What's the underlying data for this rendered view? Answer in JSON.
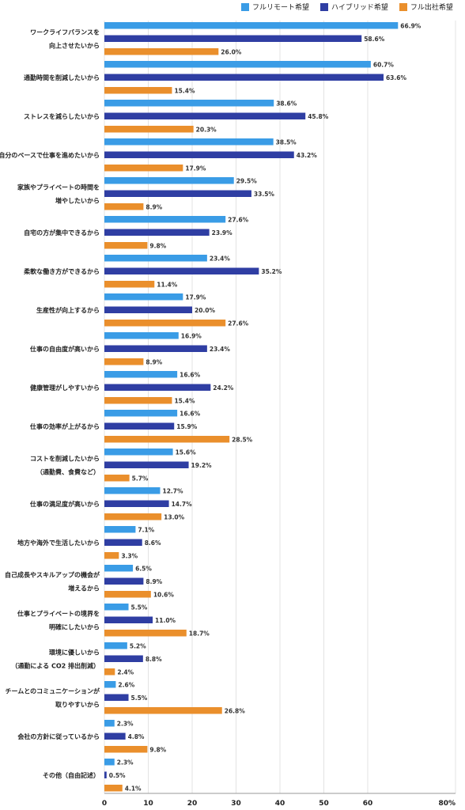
{
  "chart_data": {
    "type": "bar",
    "orientation": "horizontal",
    "title": "",
    "xlabel": "",
    "ylabel": "",
    "xlim": [
      0,
      80
    ],
    "ticks": [
      "0",
      "10",
      "20",
      "30",
      "40",
      "50",
      "60",
      "80%"
    ],
    "tick_values": [
      0,
      10,
      20,
      30,
      40,
      50,
      60,
      80
    ],
    "grid": true,
    "legend_position": "top-right",
    "categories": [
      [
        "ワークライフバランスを",
        "向上させたいから"
      ],
      [
        "通勤時間を削減したいから"
      ],
      [
        "ストレスを減らしたいから"
      ],
      [
        "自分のペースで仕事を進めたいから"
      ],
      [
        "家族やプライベートの時間を",
        "増やしたいから"
      ],
      [
        "自宅の方が集中できるから"
      ],
      [
        "柔軟な働き方ができるから"
      ],
      [
        "生産性が向上するから"
      ],
      [
        "仕事の自由度が高いから"
      ],
      [
        "健康管理がしやすいから"
      ],
      [
        "仕事の効率が上がるから"
      ],
      [
        "コストを削減したいから",
        "（通勤費、食費など）"
      ],
      [
        "仕事の満足度が高いから"
      ],
      [
        "地方や海外で生活したいから"
      ],
      [
        "自己成長やスキルアップの機会が",
        "増えるから"
      ],
      [
        "仕事とプライベートの境界を",
        "明確にしたいから"
      ],
      [
        "環境に優しいから",
        "（通勤による CO2 排出削減）"
      ],
      [
        "チームとのコミュニケーションが",
        "取りやすいから"
      ],
      [
        "会社の方針に従っているから"
      ],
      [
        "その他（自由記述）"
      ]
    ],
    "series": [
      {
        "name": "フルリモート希望",
        "color": "#3a9ce6",
        "values": [
          66.9,
          60.7,
          38.6,
          38.5,
          29.5,
          27.6,
          23.4,
          17.9,
          16.9,
          16.6,
          16.6,
          15.6,
          12.7,
          7.1,
          6.5,
          5.5,
          5.2,
          2.6,
          2.3,
          2.3
        ],
        "labels": [
          "66.9%",
          "60.7%",
          "38.6%",
          "38.5%",
          "29.5%",
          "27.6%",
          "23.4%",
          "17.9%",
          "16.9%",
          "16.6%",
          "16.6%",
          "15.6%",
          "12.7%",
          "7.1%",
          "6.5%",
          "5.5%",
          "5.2%",
          "2.6%",
          "2.3%",
          "2.3%"
        ]
      },
      {
        "name": "ハイブリッド希望",
        "color": "#2f3ea3",
        "values": [
          58.6,
          63.6,
          45.8,
          43.2,
          33.5,
          23.9,
          35.2,
          20.0,
          23.4,
          24.2,
          15.9,
          19.2,
          14.7,
          8.6,
          8.9,
          11.0,
          8.8,
          5.5,
          4.8,
          0.5
        ],
        "labels": [
          "58.6%",
          "63.6%",
          "45.8%",
          "43.2%",
          "33.5%",
          "23.9%",
          "35.2%",
          "20.0%",
          "23.4%",
          "24.2%",
          "15.9%",
          "19.2%",
          "14.7%",
          "8.6%",
          "8.9%",
          "11.0%",
          "8.8%",
          "5.5%",
          "4.8%",
          "0.5%"
        ]
      },
      {
        "name": "フル出社希望",
        "color": "#ea8f2c",
        "values": [
          26.0,
          15.4,
          20.3,
          17.9,
          8.9,
          9.8,
          11.4,
          27.6,
          8.9,
          15.4,
          28.5,
          5.7,
          13.0,
          3.3,
          10.6,
          18.7,
          2.4,
          26.8,
          9.8,
          4.1
        ],
        "labels": [
          "26.0%",
          "15.4%",
          "20.3%",
          "17.9%",
          "8.9%",
          "9.8%",
          "11.4%",
          "27.6%",
          "8.9%",
          "15.4%",
          "28.5%",
          "5.7%",
          "13.0%",
          "3.3%",
          "10.6%",
          "18.7%",
          "2.4%",
          "26.8%",
          "9.8%",
          "4.1%"
        ]
      }
    ]
  }
}
